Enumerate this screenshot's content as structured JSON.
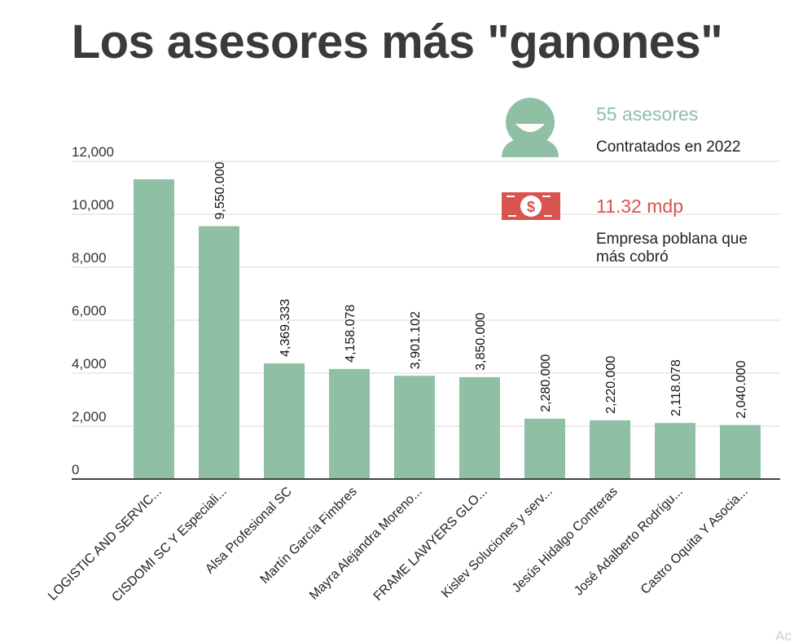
{
  "title": "Los asesores más \"ganones\"",
  "colors": {
    "bar": "#8fc0a6",
    "accent_green": "#8fc0a6",
    "accent_red": "#d9534f",
    "text": "#3a3a3a"
  },
  "info": {
    "advisors_count": "55 asesores",
    "advisors_caption": "Contratados en 2022",
    "advisors_icon": "person-icon",
    "amount": "11.32 mdp",
    "amount_caption_line1": "Empresa poblana que",
    "amount_caption_line2": "más cobró",
    "amount_icon": "money-icon"
  },
  "watermark": "Ac",
  "chart_data": {
    "type": "bar",
    "title": "Los asesores más \"ganones\"",
    "xlabel": "",
    "ylabel": "",
    "ylim": [
      0,
      12000
    ],
    "yticks": [
      0,
      2000,
      4000,
      6000,
      8000,
      10000,
      12000
    ],
    "ytick_labels": [
      "0",
      "2,000",
      "4,000",
      "6,000",
      "8,000",
      "10,000",
      "12,000"
    ],
    "grid": true,
    "categories": [
      "LOGISTIC AND SERVIC...",
      "CISDOMI SC Y Especiali...",
      "Alsa Profesional SC",
      "Martín García Fimbres",
      "Mayra Alejandra Moreno...",
      "FRAME LAWYERS GLO...",
      "Kislev Soluciones y serv...",
      "Jesús Hidalgo Contreras",
      "José Adalberto Rodrígu...",
      "Castro Oquita Y Asocia..."
    ],
    "values": [
      11320,
      9550,
      4369.333,
      4158.078,
      3901.102,
      3850,
      2280,
      2220,
      2118.078,
      2040
    ],
    "data_labels": [
      "",
      "9,550.000",
      "4,369.333",
      "4,158.078",
      "3,901.102",
      "3,850.000",
      "2,280.000",
      "2,220.000",
      "2,118.078",
      "2,040.000"
    ]
  }
}
